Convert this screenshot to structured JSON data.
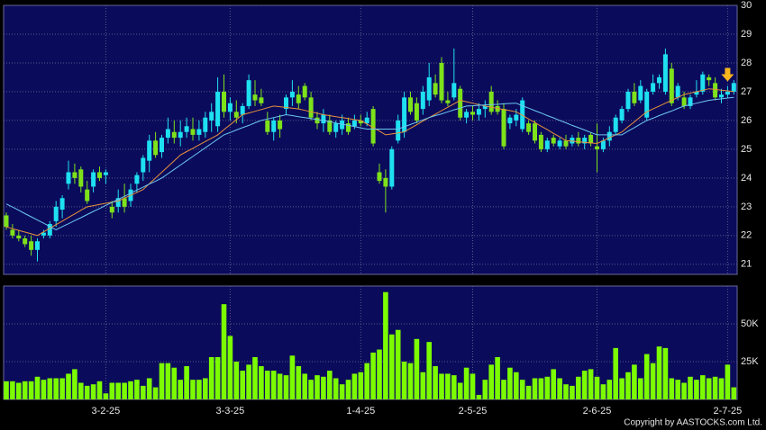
{
  "chart_data": [
    {
      "type": "candlestick",
      "categories": [
        null,
        null,
        null,
        null,
        null,
        null,
        null,
        null,
        null,
        null,
        null,
        null,
        null,
        null,
        null,
        null,
        "3-2-25",
        null,
        null,
        null,
        null,
        null,
        null,
        null,
        null,
        null,
        null,
        null,
        null,
        null,
        null,
        null,
        null,
        null,
        null,
        null,
        "3-3-25",
        null,
        null,
        null,
        null,
        null,
        null,
        null,
        null,
        null,
        null,
        null,
        null,
        null,
        null,
        null,
        null,
        null,
        null,
        null,
        null,
        "1-4-25",
        null,
        null,
        null,
        null,
        null,
        null,
        null,
        null,
        null,
        null,
        null,
        null,
        null,
        null,
        null,
        null,
        null,
        "2-5-25",
        null,
        null,
        null,
        null,
        null,
        null,
        null,
        null,
        null,
        null,
        null,
        null,
        null,
        null,
        null,
        null,
        null,
        null,
        null,
        "2-6-25",
        null,
        null,
        null,
        null,
        null,
        null,
        null,
        null,
        null,
        null,
        null,
        null,
        null,
        null,
        null,
        null,
        null,
        null,
        null,
        null,
        "2-7-25",
        null
      ],
      "open": [
        22.7,
        22.2,
        22.0,
        21.9,
        21.8,
        21.5,
        22.0,
        22.0,
        22.5,
        22.9,
        23.8,
        24.2,
        24.3,
        23.6,
        23.7,
        24.2,
        24.1,
        23.0,
        23.0,
        23.3,
        23.2,
        23.8,
        24.2,
        24.6,
        25.3,
        24.9,
        25.4,
        25.6,
        25.4,
        25.6,
        25.7,
        25.5,
        25.6,
        26.0,
        25.8,
        27.0,
        26.3,
        26.3,
        26.2,
        26.5,
        26.9,
        26.8,
        26.0,
        25.6,
        26.0,
        26.4,
        26.8,
        26.9,
        27.2,
        26.8,
        26.1,
        25.9,
        26.0,
        25.6,
        25.7,
        25.9,
        25.8,
        26.0,
        25.9,
        26.4,
        24.2,
        24.0,
        23.7,
        25.3,
        25.6,
        26.8,
        26.6,
        26.4,
        26.7,
        27.3,
        28.0,
        26.7,
        26.8,
        27.1,
        26.1,
        26.3,
        26.2,
        26.4,
        27.0,
        26.5,
        26.4,
        25.9,
        26.0,
        25.7,
        25.9,
        25.9,
        25.5,
        25.0,
        25.4,
        25.1,
        25.3,
        25.2,
        25.4,
        25.2,
        25.5,
        25.1,
        25.0,
        25.3,
        25.6,
        26.0,
        26.4,
        27.0,
        26.7,
        26.1,
        27.0,
        27.3,
        27.0,
        27.8,
        26.8,
        26.8,
        26.5,
        26.9,
        27.0,
        27.5,
        27.3,
        26.8,
        26.9,
        27.0
      ],
      "high": [
        22.8,
        22.4,
        22.2,
        22.0,
        22.0,
        21.9,
        22.2,
        22.5,
        23.2,
        23.4,
        24.6,
        24.5,
        24.4,
        23.9,
        24.3,
        24.4,
        24.3,
        23.2,
        23.6,
        23.8,
        23.8,
        24.2,
        24.8,
        25.5,
        25.6,
        25.5,
        26.1,
        26.0,
        26.0,
        26.1,
        26.1,
        26.0,
        26.3,
        26.6,
        27.5,
        27.6,
        26.8,
        26.7,
        26.6,
        27.6,
        27.4,
        27.1,
        26.3,
        26.1,
        26.2,
        26.9,
        27.4,
        27.2,
        27.3,
        27.0,
        26.3,
        26.4,
        26.2,
        26.0,
        26.2,
        26.1,
        26.2,
        26.2,
        26.3,
        26.5,
        24.5,
        24.3,
        25.1,
        26.2,
        27.0,
        27.0,
        26.8,
        27.2,
        28.0,
        27.6,
        28.2,
        27.0,
        28.5,
        27.2,
        26.4,
        26.5,
        26.6,
        26.7,
        27.2,
        26.7,
        26.6,
        26.2,
        26.4,
        26.8,
        26.0,
        26.0,
        25.6,
        25.4,
        25.5,
        25.4,
        25.5,
        25.5,
        25.6,
        25.5,
        25.6,
        25.9,
        25.4,
        25.8,
        26.2,
        26.5,
        27.1,
        27.3,
        27.4,
        27.1,
        27.6,
        27.6,
        28.5,
        28.0,
        27.3,
        27.0,
        26.9,
        27.4,
        27.7,
        27.6,
        27.5,
        27.1,
        27.2,
        27.4
      ],
      "low": [
        22.2,
        21.9,
        21.8,
        21.6,
        21.3,
        21.1,
        21.9,
        21.9,
        22.3,
        22.6,
        23.6,
        23.8,
        23.5,
        23.1,
        23.5,
        23.9,
        23.8,
        22.6,
        22.8,
        22.8,
        23.0,
        23.5,
        23.9,
        24.2,
        24.7,
        24.7,
        25.2,
        25.2,
        25.1,
        25.4,
        25.3,
        25.3,
        25.4,
        25.6,
        25.6,
        26.1,
        26.0,
        25.9,
        25.9,
        26.4,
        26.5,
        26.5,
        25.5,
        25.3,
        25.4,
        26.2,
        26.5,
        26.4,
        26.7,
        26.0,
        25.7,
        25.6,
        25.5,
        25.4,
        25.5,
        25.5,
        25.7,
        25.8,
        25.8,
        25.1,
        23.8,
        22.8,
        23.6,
        25.2,
        25.4,
        26.2,
        25.9,
        26.2,
        26.5,
        26.8,
        26.6,
        26.5,
        26.7,
        26.0,
        25.9,
        26.0,
        26.0,
        26.1,
        26.2,
        26.2,
        25.0,
        25.7,
        25.8,
        25.6,
        25.5,
        25.2,
        24.9,
        24.9,
        25.1,
        25.0,
        25.0,
        25.1,
        25.1,
        25.0,
        25.1,
        24.2,
        24.9,
        25.1,
        25.5,
        25.9,
        26.3,
        26.5,
        26.6,
        26.0,
        26.9,
        27.1,
        26.9,
        26.5,
        26.7,
        26.4,
        26.4,
        26.8,
        26.9,
        27.2,
        26.7,
        26.6,
        26.8,
        26.9
      ],
      "close": [
        22.3,
        22.0,
        21.9,
        21.7,
        21.5,
        21.8,
        22.1,
        22.4,
        23.0,
        23.3,
        24.2,
        24.0,
        23.7,
        23.2,
        24.2,
        24.0,
        24.2,
        22.8,
        23.3,
        23.0,
        23.6,
        24.1,
        24.7,
        25.3,
        24.8,
        25.4,
        25.7,
        25.4,
        25.6,
        25.8,
        25.5,
        25.7,
        26.1,
        26.3,
        27.0,
        26.3,
        26.6,
        26.1,
        26.5,
        27.4,
        26.7,
        26.6,
        25.6,
        26.0,
        25.7,
        26.8,
        27.0,
        26.6,
        26.8,
        26.1,
        25.9,
        26.2,
        25.6,
        25.9,
        26.0,
        25.6,
        26.0,
        25.9,
        26.1,
        25.2,
        23.9,
        23.7,
        25.0,
        26.0,
        26.8,
        26.3,
        26.0,
        27.0,
        27.5,
        26.9,
        26.7,
        26.6,
        27.3,
        26.1,
        26.3,
        26.2,
        26.4,
        26.5,
        26.3,
        26.3,
        25.1,
        26.1,
        26.2,
        26.7,
        25.6,
        25.3,
        25.0,
        25.3,
        25.2,
        25.3,
        25.1,
        25.4,
        25.2,
        25.4,
        25.2,
        25.0,
        25.3,
        25.6,
        26.1,
        26.4,
        27.0,
        26.6,
        27.2,
        27.0,
        27.3,
        27.5,
        28.3,
        26.6,
        27.2,
        26.5,
        26.8,
        27.0,
        27.6,
        27.4,
        26.8,
        26.9,
        27.0,
        27.3
      ],
      "up_color": "#1ee0f0",
      "down_color": "#7ee21a",
      "lines": [
        {
          "color": "#e8923a",
          "values": [
            22.3,
            22.24,
            22.18,
            22.12,
            22.06,
            22.0,
            22.13,
            22.25,
            22.38,
            22.5,
            22.63,
            22.75,
            22.88,
            23.0,
            23.04,
            23.08,
            23.12,
            23.16,
            23.2,
            23.3,
            23.4,
            23.5,
            23.6,
            23.8,
            24.0,
            24.2,
            24.4,
            24.6,
            24.8,
            24.92,
            25.03,
            25.15,
            25.27,
            25.38,
            25.5,
            25.68,
            25.85,
            26.03,
            26.2,
            26.26,
            26.32,
            26.38,
            26.44,
            26.5,
            26.48,
            26.45,
            26.43,
            26.4,
            26.35,
            26.3,
            26.25,
            26.2,
            26.17,
            26.13,
            26.1,
            26.07,
            26.03,
            26.0,
            25.88,
            25.75,
            25.63,
            25.5,
            25.53,
            25.57,
            25.6,
            25.73,
            25.85,
            25.98,
            26.1,
            26.22,
            26.34,
            26.46,
            26.58,
            26.7,
            26.65,
            26.6,
            26.55,
            26.5,
            26.46,
            26.42,
            26.38,
            26.34,
            26.3,
            26.18,
            26.05,
            25.93,
            25.8,
            25.68,
            25.55,
            25.43,
            25.3,
            25.28,
            25.26,
            25.24,
            25.22,
            25.2,
            25.3,
            25.4,
            25.5,
            25.6,
            25.78,
            25.95,
            26.13,
            26.3,
            26.4,
            26.5,
            26.6,
            26.7,
            26.8,
            26.9,
            26.95,
            27.0,
            27.05,
            27.1,
            27.08,
            27.05,
            27.03,
            27.0
          ]
        },
        {
          "color": "#6cc8f0",
          "values": [
            23.1,
            22.99,
            22.88,
            22.76,
            22.65,
            22.54,
            22.43,
            22.31,
            22.2,
            22.31,
            22.41,
            22.52,
            22.62,
            22.73,
            22.84,
            22.94,
            23.05,
            23.15,
            23.26,
            23.36,
            23.47,
            23.58,
            23.68,
            23.79,
            23.89,
            24.0,
            24.15,
            24.3,
            24.45,
            24.6,
            24.75,
            24.9,
            25.05,
            25.2,
            25.35,
            25.5,
            25.58,
            25.67,
            25.75,
            25.83,
            25.92,
            26.0,
            26.05,
            26.1,
            26.15,
            26.2,
            26.17,
            26.13,
            26.1,
            26.07,
            26.03,
            26.0,
            25.96,
            25.91,
            25.87,
            25.83,
            25.79,
            25.74,
            25.7,
            25.7,
            25.7,
            25.7,
            25.7,
            25.7,
            25.78,
            25.86,
            25.94,
            26.02,
            26.1,
            26.17,
            26.23,
            26.3,
            26.37,
            26.43,
            26.5,
            26.51,
            26.53,
            26.54,
            26.55,
            26.56,
            26.58,
            26.59,
            26.6,
            26.51,
            26.43,
            26.34,
            26.26,
            26.17,
            26.09,
            26.0,
            25.92,
            25.83,
            25.75,
            25.67,
            25.58,
            25.5,
            25.5,
            25.5,
            25.5,
            25.5,
            25.63,
            25.75,
            25.88,
            26.0,
            26.08,
            26.17,
            26.25,
            26.33,
            26.42,
            26.5,
            26.55,
            26.6,
            26.65,
            26.7,
            26.73,
            26.75,
            26.78,
            26.8
          ]
        }
      ],
      "ylim": [
        20.65,
        30
      ],
      "yticks": [
        21,
        22,
        23,
        24,
        25,
        26,
        27,
        28,
        29,
        30
      ],
      "grid": true
    },
    {
      "type": "bar",
      "color": "#7cfc00",
      "values": [
        12000,
        12000,
        11000,
        12000,
        12000,
        15000,
        13000,
        14000,
        14000,
        14000,
        17000,
        20000,
        11000,
        9000,
        10000,
        12000,
        4000,
        11000,
        11000,
        11000,
        12000,
        13000,
        9000,
        14000,
        8000,
        24000,
        24000,
        21000,
        13000,
        22000,
        13000,
        13000,
        14000,
        28000,
        28000,
        63000,
        42000,
        25000,
        19000,
        23000,
        28000,
        22000,
        19000,
        19000,
        17000,
        16000,
        29000,
        22000,
        17000,
        13000,
        16000,
        15000,
        19000,
        14000,
        10000,
        13000,
        17000,
        18000,
        24000,
        31000,
        33000,
        71000,
        43000,
        46000,
        25000,
        24000,
        40000,
        18000,
        38000,
        22000,
        17000,
        17000,
        16000,
        11000,
        21000,
        17000,
        3000,
        13000,
        23000,
        28000,
        13000,
        21000,
        18000,
        13000,
        9000,
        14000,
        14000,
        15000,
        20000,
        14000,
        10000,
        9000,
        15000,
        19000,
        20000,
        15000,
        10000,
        13000,
        34000,
        14000,
        18000,
        23000,
        14000,
        30000,
        24000,
        35000,
        34000,
        14000,
        13000,
        11000,
        15000,
        13000,
        16000,
        14000,
        15000,
        14000,
        23000,
        8000
      ],
      "ylim": [
        0,
        75000
      ],
      "yticks": [
        {
          "value": 25000,
          "label": "25K"
        },
        {
          "value": 50000,
          "label": "50K"
        }
      ],
      "grid": true
    },
    {
      "type": "note",
      "text": "Copyright by AASTOCKS.com Ltd."
    }
  ]
}
